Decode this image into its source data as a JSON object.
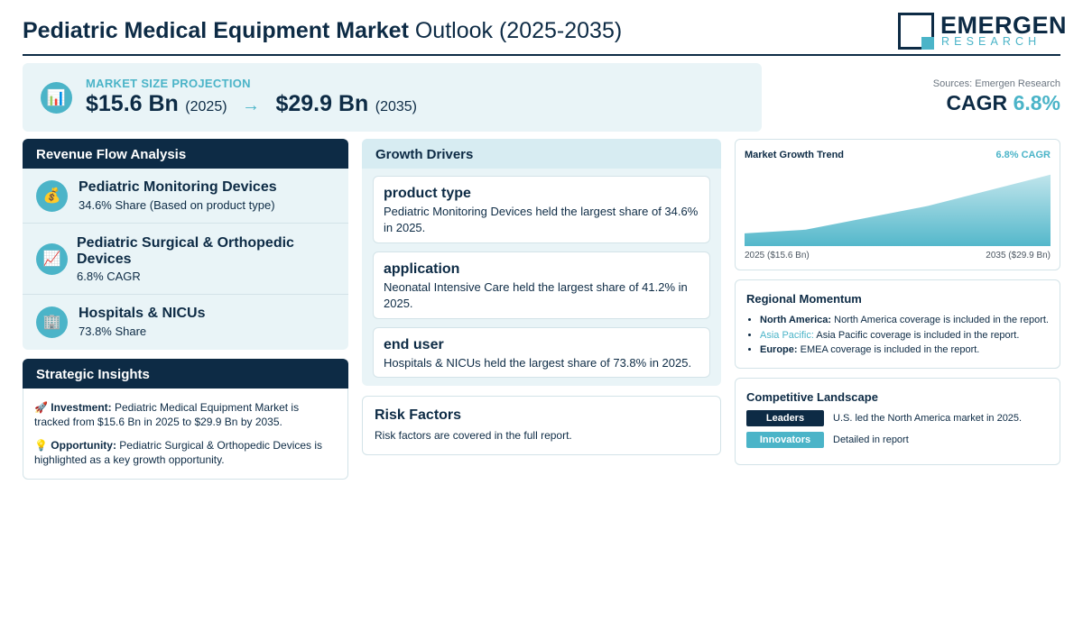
{
  "header": {
    "title_bold": "Pediatric Medical Equipment Market",
    "title_light": "Outlook (2025-2035)",
    "logo_name": "EMERGEN",
    "logo_sub": "RESEARCH"
  },
  "market": {
    "icon": "chart-icon",
    "label": "MARKET SIZE PROJECTION",
    "start_value": "$15.6 Bn",
    "start_year": "(2025)",
    "arrow": "→",
    "end_value": "$29.9 Bn",
    "end_year": "(2035)"
  },
  "sources": "Sources: Emergen Research",
  "cagr": {
    "label": "CAGR",
    "value": "6.8%"
  },
  "revenue": {
    "title": "Revenue Flow Analysis",
    "items": [
      {
        "icon": "money-bag-icon",
        "glyph": "💰",
        "title": "Pediatric Monitoring Devices",
        "subtitle": "34.6% Share (Based on product type)"
      },
      {
        "icon": "trend-up-icon",
        "glyph": "📈",
        "title": "Pediatric Surgical & Orthopedic Devices",
        "subtitle": "6.8% CAGR"
      },
      {
        "icon": "hospital-icon",
        "glyph": "🏢",
        "title": "Hospitals & NICUs",
        "subtitle": "73.8% Share"
      }
    ]
  },
  "insights": {
    "title": "Strategic Insights",
    "items": [
      {
        "icon": "🚀",
        "label": "Investment:",
        "text": "Pediatric Medical Equipment Market is tracked from $15.6 Bn in 2025 to $29.9 Bn by 2035."
      },
      {
        "icon": "💡",
        "label": "Opportunity:",
        "text": "Pediatric Surgical & Orthopedic Devices is highlighted as a key growth opportunity."
      }
    ]
  },
  "drivers": {
    "title": "Growth Drivers",
    "cards": [
      {
        "title": "product type",
        "text": "Pediatric Monitoring Devices held the largest share of 34.6% in 2025."
      },
      {
        "title": "application",
        "text": "Neonatal Intensive Care held the largest share of 41.2% in 2025."
      },
      {
        "title": "end user",
        "text": "Hospitals & NICUs held the largest share of 73.8% in 2025."
      }
    ]
  },
  "risk": {
    "title": "Risk Factors",
    "text": "Risk factors are covered in the full report."
  },
  "trend": {
    "title": "Market Growth Trend",
    "cagr": "6.8% CAGR",
    "start_label": "2025 ($15.6 Bn)",
    "end_label": "2035 ($29.9 Bn)"
  },
  "chart_data": {
    "type": "area",
    "x": [
      2025,
      2027,
      2031,
      2035
    ],
    "values": [
      15.6,
      16.5,
      22.3,
      29.9
    ],
    "color": "#4bb4c8"
  },
  "regional": {
    "title": "Regional Momentum",
    "items": [
      {
        "region": "North America:",
        "text": "North America coverage is included in the report."
      },
      {
        "region": "Asia Pacific:",
        "text": "Asia Pacific coverage is included in the report."
      },
      {
        "region": "Europe:",
        "text": "EMEA coverage is included in the report."
      }
    ]
  },
  "competitive": {
    "title": "Competitive Landscape",
    "rows": [
      {
        "badge": "Leaders",
        "text": "U.S. led the North America market in 2025."
      },
      {
        "badge": "Innovators",
        "text": "Detailed in report"
      }
    ]
  },
  "colors": {
    "navy": "#0d2b45",
    "teal": "#4bb4c8",
    "panel_bg": "#e9f4f7"
  }
}
